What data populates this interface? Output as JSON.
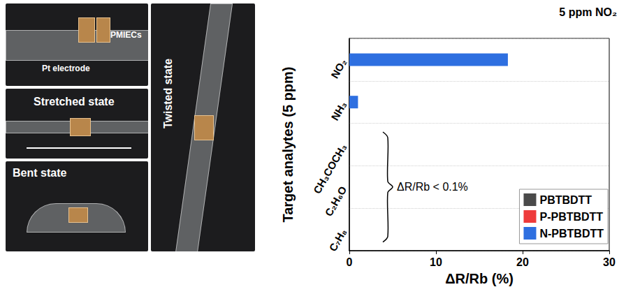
{
  "chart_data": {
    "type": "bar",
    "orientation": "horizontal",
    "title": "5 ppm NO₂",
    "x_label": "ΔR/Rb (%)",
    "y_label": "Target analytes (5 ppm)",
    "categories": [
      "NO₂",
      "NH₃",
      "CH₃COCH₃",
      "C₂H₆O",
      "C₇H₈"
    ],
    "series": [
      {
        "name": "PBTBDTT",
        "color": "#4a4a4a",
        "values": [
          0,
          0,
          0,
          0,
          0
        ]
      },
      {
        "name": "P-PBTBDTT",
        "color": "#ee3b3b",
        "values": [
          0,
          0,
          0,
          0,
          0
        ]
      },
      {
        "name": "N-PBTBDTT",
        "color": "#2e6fe0",
        "values": [
          18.3,
          1.0,
          0,
          0,
          0
        ]
      }
    ],
    "xlim": [
      0,
      30
    ],
    "xticks": [
      0,
      10,
      20,
      30
    ],
    "grid": true,
    "legend": "lower right",
    "annotations": [
      {
        "text": "ΔR/Rb < 0.1%",
        "categories": [
          "CH₃COCH₃",
          "C₂H₆O",
          "C₇H₈"
        ]
      }
    ]
  },
  "photo": {
    "top_panel": [
      "PMIECs",
      "Pt electrode"
    ],
    "middle_panel": "Stretched state",
    "bottom_panel": "Bent state",
    "right_panel": "Twisted state"
  }
}
